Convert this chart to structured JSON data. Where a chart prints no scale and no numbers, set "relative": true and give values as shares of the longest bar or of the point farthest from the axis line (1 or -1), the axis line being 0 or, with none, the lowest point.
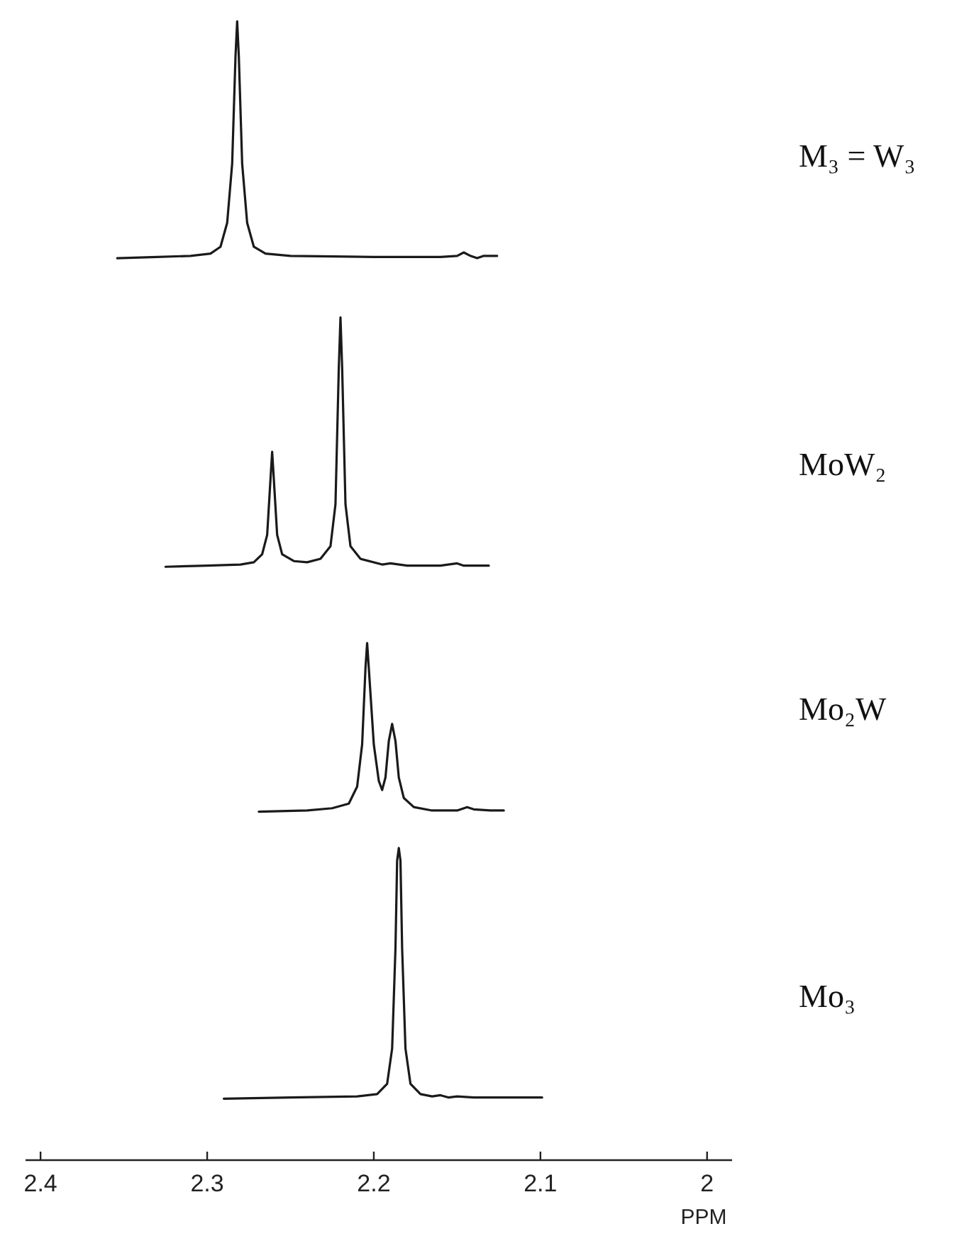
{
  "chart_data": {
    "type": "line",
    "relative": true,
    "xlim": [
      2.409,
      1.985
    ],
    "xticks": [
      2.4,
      2.3,
      2.2,
      2.1,
      2.0
    ],
    "xlabel": "PPM",
    "series": [
      {
        "name": "M₃ = W₃",
        "color": "#1a1a1a",
        "x": [
          2.354,
          2.33,
          2.31,
          2.298,
          2.292,
          2.288,
          2.285,
          2.283,
          2.282,
          2.281,
          2.279,
          2.276,
          2.272,
          2.265,
          2.25,
          2.2,
          2.16,
          2.15,
          2.146,
          2.142,
          2.138,
          2.134,
          2.126
        ],
        "values": [
          0.792,
          0.793,
          0.794,
          0.796,
          0.802,
          0.823,
          0.875,
          0.969,
          1,
          0.969,
          0.875,
          0.823,
          0.802,
          0.796,
          0.794,
          0.793,
          0.793,
          0.794,
          0.797,
          0.794,
          0.792,
          0.794,
          0.794
        ]
      },
      {
        "name": "MoW₂",
        "color": "#1a1a1a",
        "x": [
          2.325,
          2.3,
          2.28,
          2.272,
          2.267,
          2.264,
          2.262,
          2.261,
          2.26,
          2.258,
          2.255,
          2.248,
          2.24,
          2.232,
          2.226,
          2.223,
          2.221,
          2.22,
          2.219,
          2.217,
          2.214,
          2.208,
          2.195,
          2.19,
          2.18,
          2.16,
          2.15,
          2.146,
          2.131
        ],
        "values": [
          0.521,
          0.522,
          0.523,
          0.525,
          0.532,
          0.549,
          0.598,
          0.622,
          0.598,
          0.549,
          0.532,
          0.526,
          0.525,
          0.528,
          0.539,
          0.576,
          0.696,
          0.74,
          0.696,
          0.576,
          0.539,
          0.528,
          0.523,
          0.524,
          0.522,
          0.522,
          0.524,
          0.522,
          0.522
        ]
      },
      {
        "name": "Mo₂W",
        "color": "#1a1a1a",
        "x": [
          2.269,
          2.24,
          2.225,
          2.215,
          2.21,
          2.207,
          2.205,
          2.204,
          2.203,
          2.2,
          2.197,
          2.195,
          2.193,
          2.191,
          2.189,
          2.187,
          2.185,
          2.182,
          2.176,
          2.165,
          2.15,
          2.144,
          2.14,
          2.13,
          2.122
        ],
        "values": [
          0.306,
          0.307,
          0.309,
          0.313,
          0.328,
          0.365,
          0.432,
          0.454,
          0.432,
          0.365,
          0.333,
          0.325,
          0.336,
          0.368,
          0.383,
          0.368,
          0.336,
          0.318,
          0.31,
          0.307,
          0.307,
          0.31,
          0.308,
          0.307,
          0.307
        ]
      },
      {
        "name": "Mo₃",
        "color": "#1a1a1a",
        "x": [
          2.29,
          2.25,
          2.21,
          2.198,
          2.192,
          2.189,
          2.187,
          2.186,
          2.185,
          2.184,
          2.183,
          2.181,
          2.178,
          2.172,
          2.165,
          2.16,
          2.155,
          2.15,
          2.14,
          2.12,
          2.099
        ],
        "values": [
          0.054,
          0.055,
          0.056,
          0.058,
          0.067,
          0.098,
          0.186,
          0.263,
          0.274,
          0.263,
          0.186,
          0.098,
          0.067,
          0.058,
          0.056,
          0.057,
          0.055,
          0.056,
          0.055,
          0.055,
          0.055
        ]
      }
    ]
  }
}
